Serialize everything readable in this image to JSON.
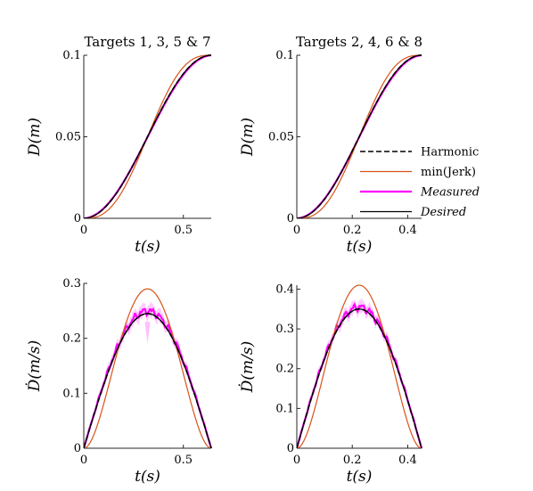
{
  "figure": {
    "legend": {
      "placement": "inside lower-right of top-right panel",
      "entries": [
        {
          "label": "Harmonic",
          "style": "dashed",
          "color": "#000000",
          "italic": false
        },
        {
          "label": "min(Jerk)",
          "style": "solid",
          "color": "#d95319",
          "italic": false
        },
        {
          "label": "Measured",
          "style": "solid",
          "color": "#ff00ff",
          "italic": true
        },
        {
          "label": "Desired",
          "style": "solid",
          "color": "#000000",
          "italic": true
        }
      ]
    }
  },
  "chart_data": [
    {
      "type": "line",
      "panel": "top-left",
      "title": "Targets 1, 3, 5 & 7",
      "xlabel": "t(s)",
      "ylabel": "D(m)",
      "xlim": [
        0,
        0.64
      ],
      "ylim": [
        0,
        0.1
      ],
      "xticks": [
        "0",
        "0.5"
      ],
      "yticks": [
        "0",
        "0.05",
        "0.1"
      ],
      "grid": false,
      "series": [
        {
          "name": "Harmonic",
          "kind": "harmonic_pos",
          "T": 0.64,
          "amp": 0.1,
          "color": "#000000",
          "dash": true
        },
        {
          "name": "min(Jerk)",
          "kind": "minjerk_pos",
          "T": 0.64,
          "amp": 0.1,
          "color": "#d95319"
        },
        {
          "name": "Measured",
          "kind": "measured_pos",
          "T": 0.64,
          "amp": 0.1,
          "color": "#ff00ff"
        },
        {
          "name": "Desired",
          "kind": "harmonic_pos",
          "T": 0.64,
          "amp": 0.1,
          "color": "#000000"
        }
      ]
    },
    {
      "type": "line",
      "panel": "top-right",
      "title": "Targets 2, 4, 6 & 8",
      "xlabel": "t(s)",
      "ylabel": "D(m)",
      "xlim": [
        0,
        0.45
      ],
      "ylim": [
        0,
        0.1
      ],
      "xticks": [
        "0",
        "0.2",
        "0.4"
      ],
      "yticks": [
        "0",
        "0.05",
        "0.1"
      ],
      "grid": false,
      "series": [
        {
          "name": "Harmonic",
          "kind": "harmonic_pos",
          "T": 0.45,
          "amp": 0.1,
          "color": "#000000",
          "dash": true
        },
        {
          "name": "min(Jerk)",
          "kind": "minjerk_pos",
          "T": 0.45,
          "amp": 0.1,
          "color": "#d95319"
        },
        {
          "name": "Measured",
          "kind": "measured_pos",
          "T": 0.45,
          "amp": 0.1,
          "color": "#ff00ff"
        },
        {
          "name": "Desired",
          "kind": "harmonic_pos",
          "T": 0.45,
          "amp": 0.1,
          "color": "#000000"
        }
      ]
    },
    {
      "type": "line",
      "panel": "bottom-left",
      "title": "",
      "xlabel": "t(s)",
      "ylabel": "Ḋ(m/s)",
      "xlim": [
        0,
        0.64
      ],
      "ylim": [
        0,
        0.3
      ],
      "xticks": [
        "0",
        "0.5"
      ],
      "yticks": [
        "0",
        "0.1",
        "0.2",
        "0.3"
      ],
      "grid": false,
      "peaks": {
        "harmonic": 0.245,
        "minjerk": 0.29,
        "measured": 0.25
      },
      "series": [
        {
          "name": "Harmonic",
          "kind": "harmonic_vel",
          "T": 0.64,
          "color": "#000000",
          "dash": true
        },
        {
          "name": "min(Jerk)",
          "kind": "minjerk_vel",
          "T": 0.64,
          "color": "#d95319"
        },
        {
          "name": "Measured",
          "kind": "measured_vel",
          "T": 0.64,
          "color": "#ff00ff",
          "band": true
        },
        {
          "name": "Desired",
          "kind": "harmonic_vel",
          "T": 0.64,
          "color": "#000000"
        }
      ]
    },
    {
      "type": "line",
      "panel": "bottom-right",
      "title": "",
      "xlabel": "t(s)",
      "ylabel": "Ḋ(m/s)",
      "xlim": [
        0,
        0.45
      ],
      "ylim": [
        0,
        0.41
      ],
      "xticks": [
        "0",
        "0.2",
        "0.4"
      ],
      "yticks": [
        "0",
        "0.1",
        "0.2",
        "0.3",
        "0.4"
      ],
      "grid": false,
      "peaks": {
        "harmonic": 0.35,
        "minjerk": 0.41,
        "measured": 0.355
      },
      "series": [
        {
          "name": "Harmonic",
          "kind": "harmonic_vel",
          "T": 0.45,
          "color": "#000000",
          "dash": true
        },
        {
          "name": "min(Jerk)",
          "kind": "minjerk_vel",
          "T": 0.45,
          "color": "#d95319"
        },
        {
          "name": "Measured",
          "kind": "measured_vel",
          "T": 0.45,
          "color": "#ff00ff",
          "band": true
        },
        {
          "name": "Desired",
          "kind": "harmonic_vel",
          "T": 0.45,
          "color": "#000000"
        }
      ]
    }
  ]
}
